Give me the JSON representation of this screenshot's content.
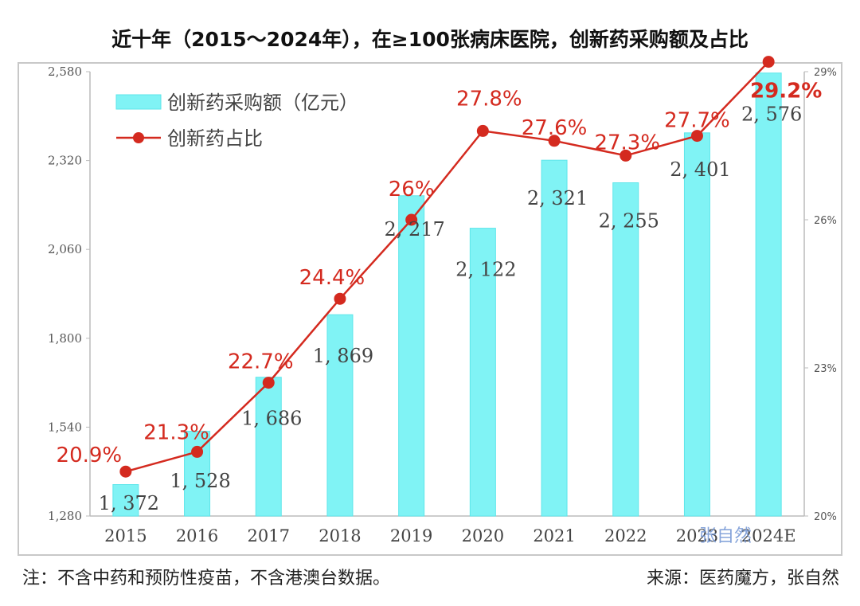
{
  "chart_data": {
    "type": "bar+line",
    "title": "近十年（2015～2024年），在≥100张病床医院，创新药采购额及占比",
    "categories": [
      "2015",
      "2016",
      "2017",
      "2018",
      "2019",
      "2020",
      "2021",
      "2022",
      "2023",
      "2024E"
    ],
    "series": [
      {
        "name": "创新药采购额（亿元）",
        "type": "bar",
        "axis": "left",
        "values": [
          1372,
          1528,
          1686,
          1869,
          2217,
          2122,
          2321,
          2255,
          2401,
          2576
        ],
        "labels": [
          "1, 372",
          "1, 528",
          "1, 686",
          "1, 869",
          "2, 217",
          "2, 122",
          "2, 321",
          "2, 255",
          "2, 401",
          "2, 576"
        ]
      },
      {
        "name": "创新药占比",
        "type": "line",
        "axis": "right",
        "values": [
          20.9,
          21.3,
          22.7,
          24.4,
          26.0,
          27.8,
          27.6,
          27.3,
          27.7,
          29.2
        ],
        "labels": [
          "20.9%",
          "21.3%",
          "22.7%",
          "24.4%",
          "26%",
          "27.8%",
          "27.6%",
          "27.3%",
          "27.7%",
          "29.2%"
        ]
      }
    ],
    "left_axis": {
      "ylim": [
        1280,
        2580
      ],
      "ticks": [
        "1,280",
        "1,540",
        "1,800",
        "2,060",
        "2,320",
        "2,580"
      ],
      "tick_values": [
        1280,
        1540,
        1800,
        2060,
        2320,
        2580
      ]
    },
    "right_axis": {
      "ylim": [
        20,
        29
      ],
      "ticks": [
        "20%",
        "23%",
        "26%",
        "29%"
      ],
      "tick_values": [
        20,
        23,
        26,
        29
      ]
    },
    "legend": {
      "position": "top-left"
    },
    "colors": {
      "bar": "#80f3f5",
      "bar_edge": "#5ee6ea",
      "line": "#d42a1f",
      "axis_text": "#555555",
      "label_text": "#444444"
    }
  },
  "footer": {
    "note": "注：不含中药和预防性疫苗，不含港澳台数据。",
    "source": "来源：医药魔方，张自然"
  },
  "watermark": "张自然"
}
